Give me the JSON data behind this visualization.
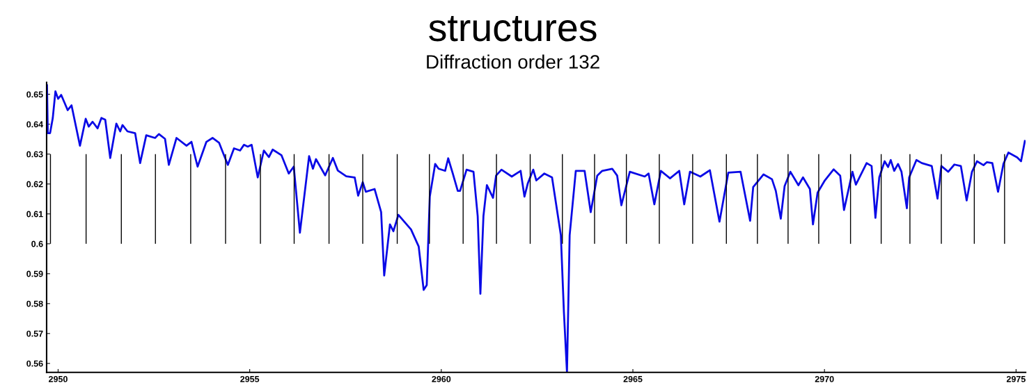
{
  "chart_data": {
    "type": "line",
    "title": "Diffraction order 132",
    "annotations": [
      "structures"
    ],
    "xlim": [
      2949.7,
      2975.25
    ],
    "ylim": [
      0.557,
      0.654
    ],
    "xticks": [
      2950,
      2955,
      2960,
      2965,
      2970,
      2975
    ],
    "yticks": [
      0.56,
      0.57,
      0.58,
      0.59,
      0.6,
      0.61,
      0.62,
      0.63,
      0.64,
      0.65
    ],
    "marker": "none",
    "line_style": "solid",
    "series": [
      {
        "color": "#0a0ae6",
        "x": [
          2949.71,
          2949.73,
          2949.79,
          2949.86,
          2949.93,
          2950.0,
          2950.08,
          2950.25,
          2950.35,
          2950.57,
          2950.72,
          2950.8,
          2950.9,
          2951.03,
          2951.13,
          2951.23,
          2951.36,
          2951.52,
          2951.62,
          2951.68,
          2951.81,
          2952.01,
          2952.14,
          2952.3,
          2952.53,
          2952.63,
          2952.79,
          2952.89,
          2953.09,
          2953.35,
          2953.48,
          2953.64,
          2953.87,
          2954.03,
          2954.2,
          2954.33,
          2954.43,
          2954.59,
          2954.75,
          2954.85,
          2954.95,
          2955.05,
          2955.21,
          2955.37,
          2955.5,
          2955.6,
          2955.83,
          2956.02,
          2956.15,
          2956.31,
          2956.55,
          2956.65,
          2956.73,
          2956.97,
          2957.17,
          2957.3,
          2957.52,
          2957.74,
          2957.83,
          2957.95,
          2958.03,
          2958.26,
          2958.43,
          2958.51,
          2958.66,
          2958.75,
          2958.88,
          2959.21,
          2959.41,
          2959.54,
          2959.62,
          2959.7,
          2959.84,
          2959.93,
          2960.1,
          2960.18,
          2960.3,
          2960.43,
          2960.49,
          2960.66,
          2960.84,
          2960.95,
          2961.02,
          2961.1,
          2961.19,
          2961.35,
          2961.43,
          2961.57,
          2961.84,
          2962.07,
          2962.17,
          2962.26,
          2962.4,
          2962.48,
          2962.69,
          2962.89,
          2963.12,
          2963.2,
          2963.28,
          2963.35,
          2963.51,
          2963.74,
          2963.9,
          2964.07,
          2964.2,
          2964.46,
          2964.59,
          2964.7,
          2964.92,
          2965.31,
          2965.41,
          2965.56,
          2965.73,
          2965.97,
          2966.21,
          2966.34,
          2966.49,
          2966.76,
          2967.01,
          2967.26,
          2967.49,
          2967.81,
          2968.06,
          2968.14,
          2968.41,
          2968.63,
          2968.73,
          2968.86,
          2968.96,
          2969.11,
          2969.32,
          2969.44,
          2969.62,
          2969.7,
          2969.82,
          2970.01,
          2970.24,
          2970.41,
          2970.51,
          2970.73,
          2970.82,
          2971.1,
          2971.23,
          2971.33,
          2971.43,
          2971.57,
          2971.66,
          2971.73,
          2971.82,
          2971.92,
          2972.01,
          2972.15,
          2972.21,
          2972.4,
          2972.54,
          2972.8,
          2972.95,
          2973.05,
          2973.23,
          2973.39,
          2973.56,
          2973.71,
          2973.85,
          2973.98,
          2974.15,
          2974.24,
          2974.38,
          2974.53,
          2974.67,
          2974.8,
          2975.03,
          2975.13,
          2975.23
        ],
        "values": [
          0.653,
          0.637,
          0.637,
          0.642,
          0.651,
          0.6485,
          0.6498,
          0.6447,
          0.6463,
          0.6328,
          0.6418,
          0.6392,
          0.6408,
          0.6386,
          0.6421,
          0.6415,
          0.6287,
          0.6402,
          0.6376,
          0.6397,
          0.6376,
          0.637,
          0.627,
          0.6363,
          0.6354,
          0.6367,
          0.6351,
          0.6264,
          0.6354,
          0.6328,
          0.6341,
          0.6258,
          0.6341,
          0.6354,
          0.6338,
          0.6296,
          0.6264,
          0.6319,
          0.6312,
          0.6331,
          0.6325,
          0.6331,
          0.6222,
          0.6312,
          0.629,
          0.6315,
          0.6296,
          0.6235,
          0.6258,
          0.6037,
          0.6293,
          0.6251,
          0.6283,
          0.6229,
          0.6287,
          0.6245,
          0.6226,
          0.6222,
          0.6161,
          0.6206,
          0.6174,
          0.6183,
          0.6106,
          0.5894,
          0.6065,
          0.6042,
          0.6097,
          0.6048,
          0.5991,
          0.5846,
          0.5862,
          0.6158,
          0.6267,
          0.6251,
          0.6244,
          0.6286,
          0.6235,
          0.6177,
          0.6177,
          0.6248,
          0.6241,
          0.6093,
          0.5833,
          0.6093,
          0.6196,
          0.6154,
          0.6228,
          0.6248,
          0.6225,
          0.6244,
          0.6158,
          0.6203,
          0.6248,
          0.6212,
          0.6235,
          0.6222,
          0.6029,
          0.5772,
          0.557,
          0.6029,
          0.6244,
          0.6244,
          0.6106,
          0.6228,
          0.6244,
          0.6251,
          0.6228,
          0.6129,
          0.6241,
          0.6225,
          0.6235,
          0.6132,
          0.6244,
          0.6219,
          0.6244,
          0.6132,
          0.6241,
          0.6225,
          0.6246,
          0.6074,
          0.6238,
          0.6241,
          0.6077,
          0.619,
          0.6232,
          0.6216,
          0.6177,
          0.6084,
          0.6193,
          0.6241,
          0.6196,
          0.6222,
          0.6183,
          0.6065,
          0.6171,
          0.6212,
          0.6249,
          0.6228,
          0.6113,
          0.6241,
          0.6198,
          0.627,
          0.626,
          0.6087,
          0.6222,
          0.6276,
          0.6257,
          0.628,
          0.6244,
          0.6267,
          0.6241,
          0.6119,
          0.6222,
          0.628,
          0.627,
          0.626,
          0.6151,
          0.626,
          0.6241,
          0.6265,
          0.626,
          0.6145,
          0.6241,
          0.6276,
          0.6263,
          0.6273,
          0.627,
          0.6174,
          0.6267,
          0.6305,
          0.6289,
          0.6276,
          0.6344
        ]
      },
      {
        "type": "bar",
        "color": "#000000",
        "x": [
          2949.8,
          2950.73,
          2951.65,
          2952.54,
          2953.46,
          2954.37,
          2955.28,
          2956.16,
          2957.07,
          2957.95,
          2958.85,
          2959.69,
          2960.57,
          2961.44,
          2962.32,
          2963.16,
          2964.0,
          2964.83,
          2965.69,
          2966.56,
          2967.44,
          2968.25,
          2969.05,
          2969.85,
          2970.68,
          2971.48,
          2972.23,
          2973.05,
          2973.91,
          2974.7
        ],
        "base": [
          0.6,
          0.6,
          0.6,
          0.6,
          0.6,
          0.6,
          0.6,
          0.6,
          0.6,
          0.6,
          0.6,
          0.6,
          0.6,
          0.6,
          0.6,
          0.6,
          0.6,
          0.6,
          0.6,
          0.6,
          0.6,
          0.6,
          0.6,
          0.6,
          0.6,
          0.6,
          0.6,
          0.6,
          0.6,
          0.6
        ],
        "values": [
          0.03,
          0.03,
          0.03,
          0.03,
          0.03,
          0.03,
          0.03,
          0.03,
          0.03,
          0.03,
          0.03,
          0.03,
          0.03,
          0.03,
          0.03,
          0.03,
          0.03,
          0.03,
          0.03,
          0.03,
          0.03,
          0.03,
          0.03,
          0.03,
          0.03,
          0.03,
          0.03,
          0.03,
          0.03,
          0.03
        ]
      }
    ]
  }
}
